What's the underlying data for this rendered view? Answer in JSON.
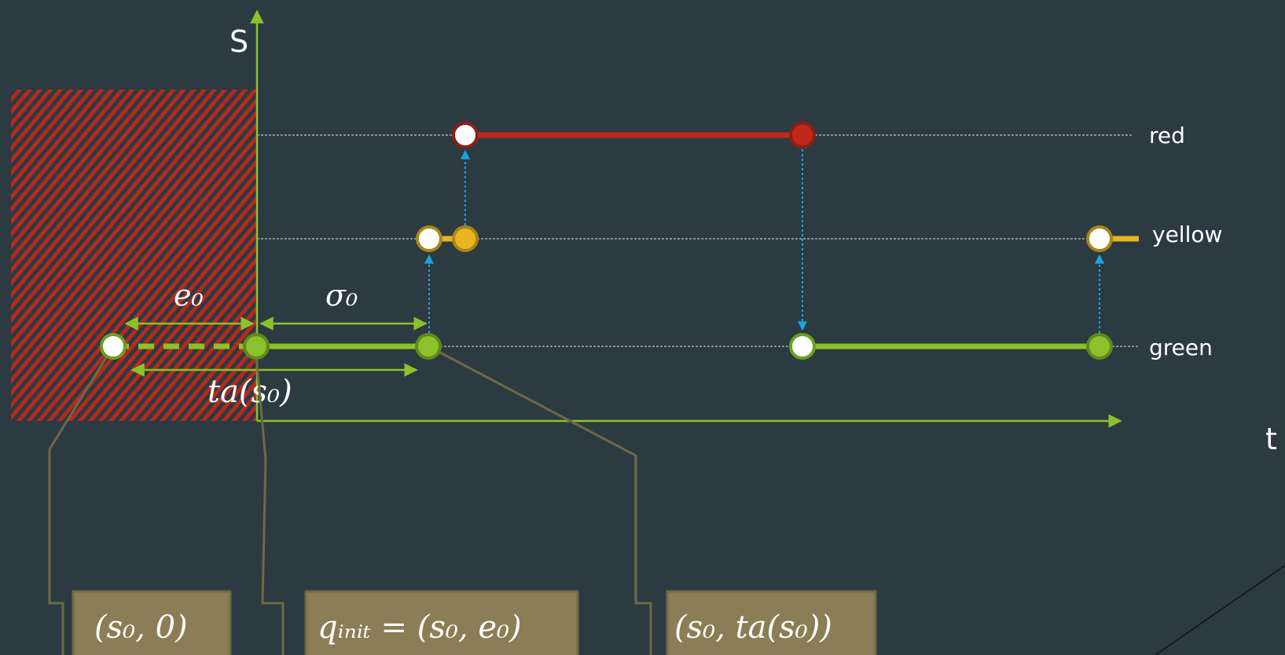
{
  "axes": {
    "y_label": "S",
    "x_label": "t"
  },
  "states": [
    {
      "key": "red",
      "label": "red",
      "color": "#c0281c"
    },
    {
      "key": "yellow",
      "label": "yellow",
      "color": "#e8b420"
    },
    {
      "key": "green",
      "label": "green",
      "color": "#8bc12a"
    }
  ],
  "annotations": {
    "e0": "e₀",
    "sigma0": "σ₀",
    "ta_s0": "ta(s₀)"
  },
  "callouts": [
    {
      "key": "s0_zero",
      "text": "(s₀, 0)"
    },
    {
      "key": "q_init",
      "text": "qᵢₙᵢₜ = (s₀, e₀)"
    },
    {
      "key": "s0_ta",
      "text": "(s₀, ta(s₀))"
    }
  ],
  "colors": {
    "background": "#2c3a42",
    "axis": "#8bc12a",
    "arrow_transition": "#1aa3e0",
    "callout_fill": "#8b7d55",
    "callout_line": "#6e6a45",
    "hatch": "#c0281c"
  }
}
